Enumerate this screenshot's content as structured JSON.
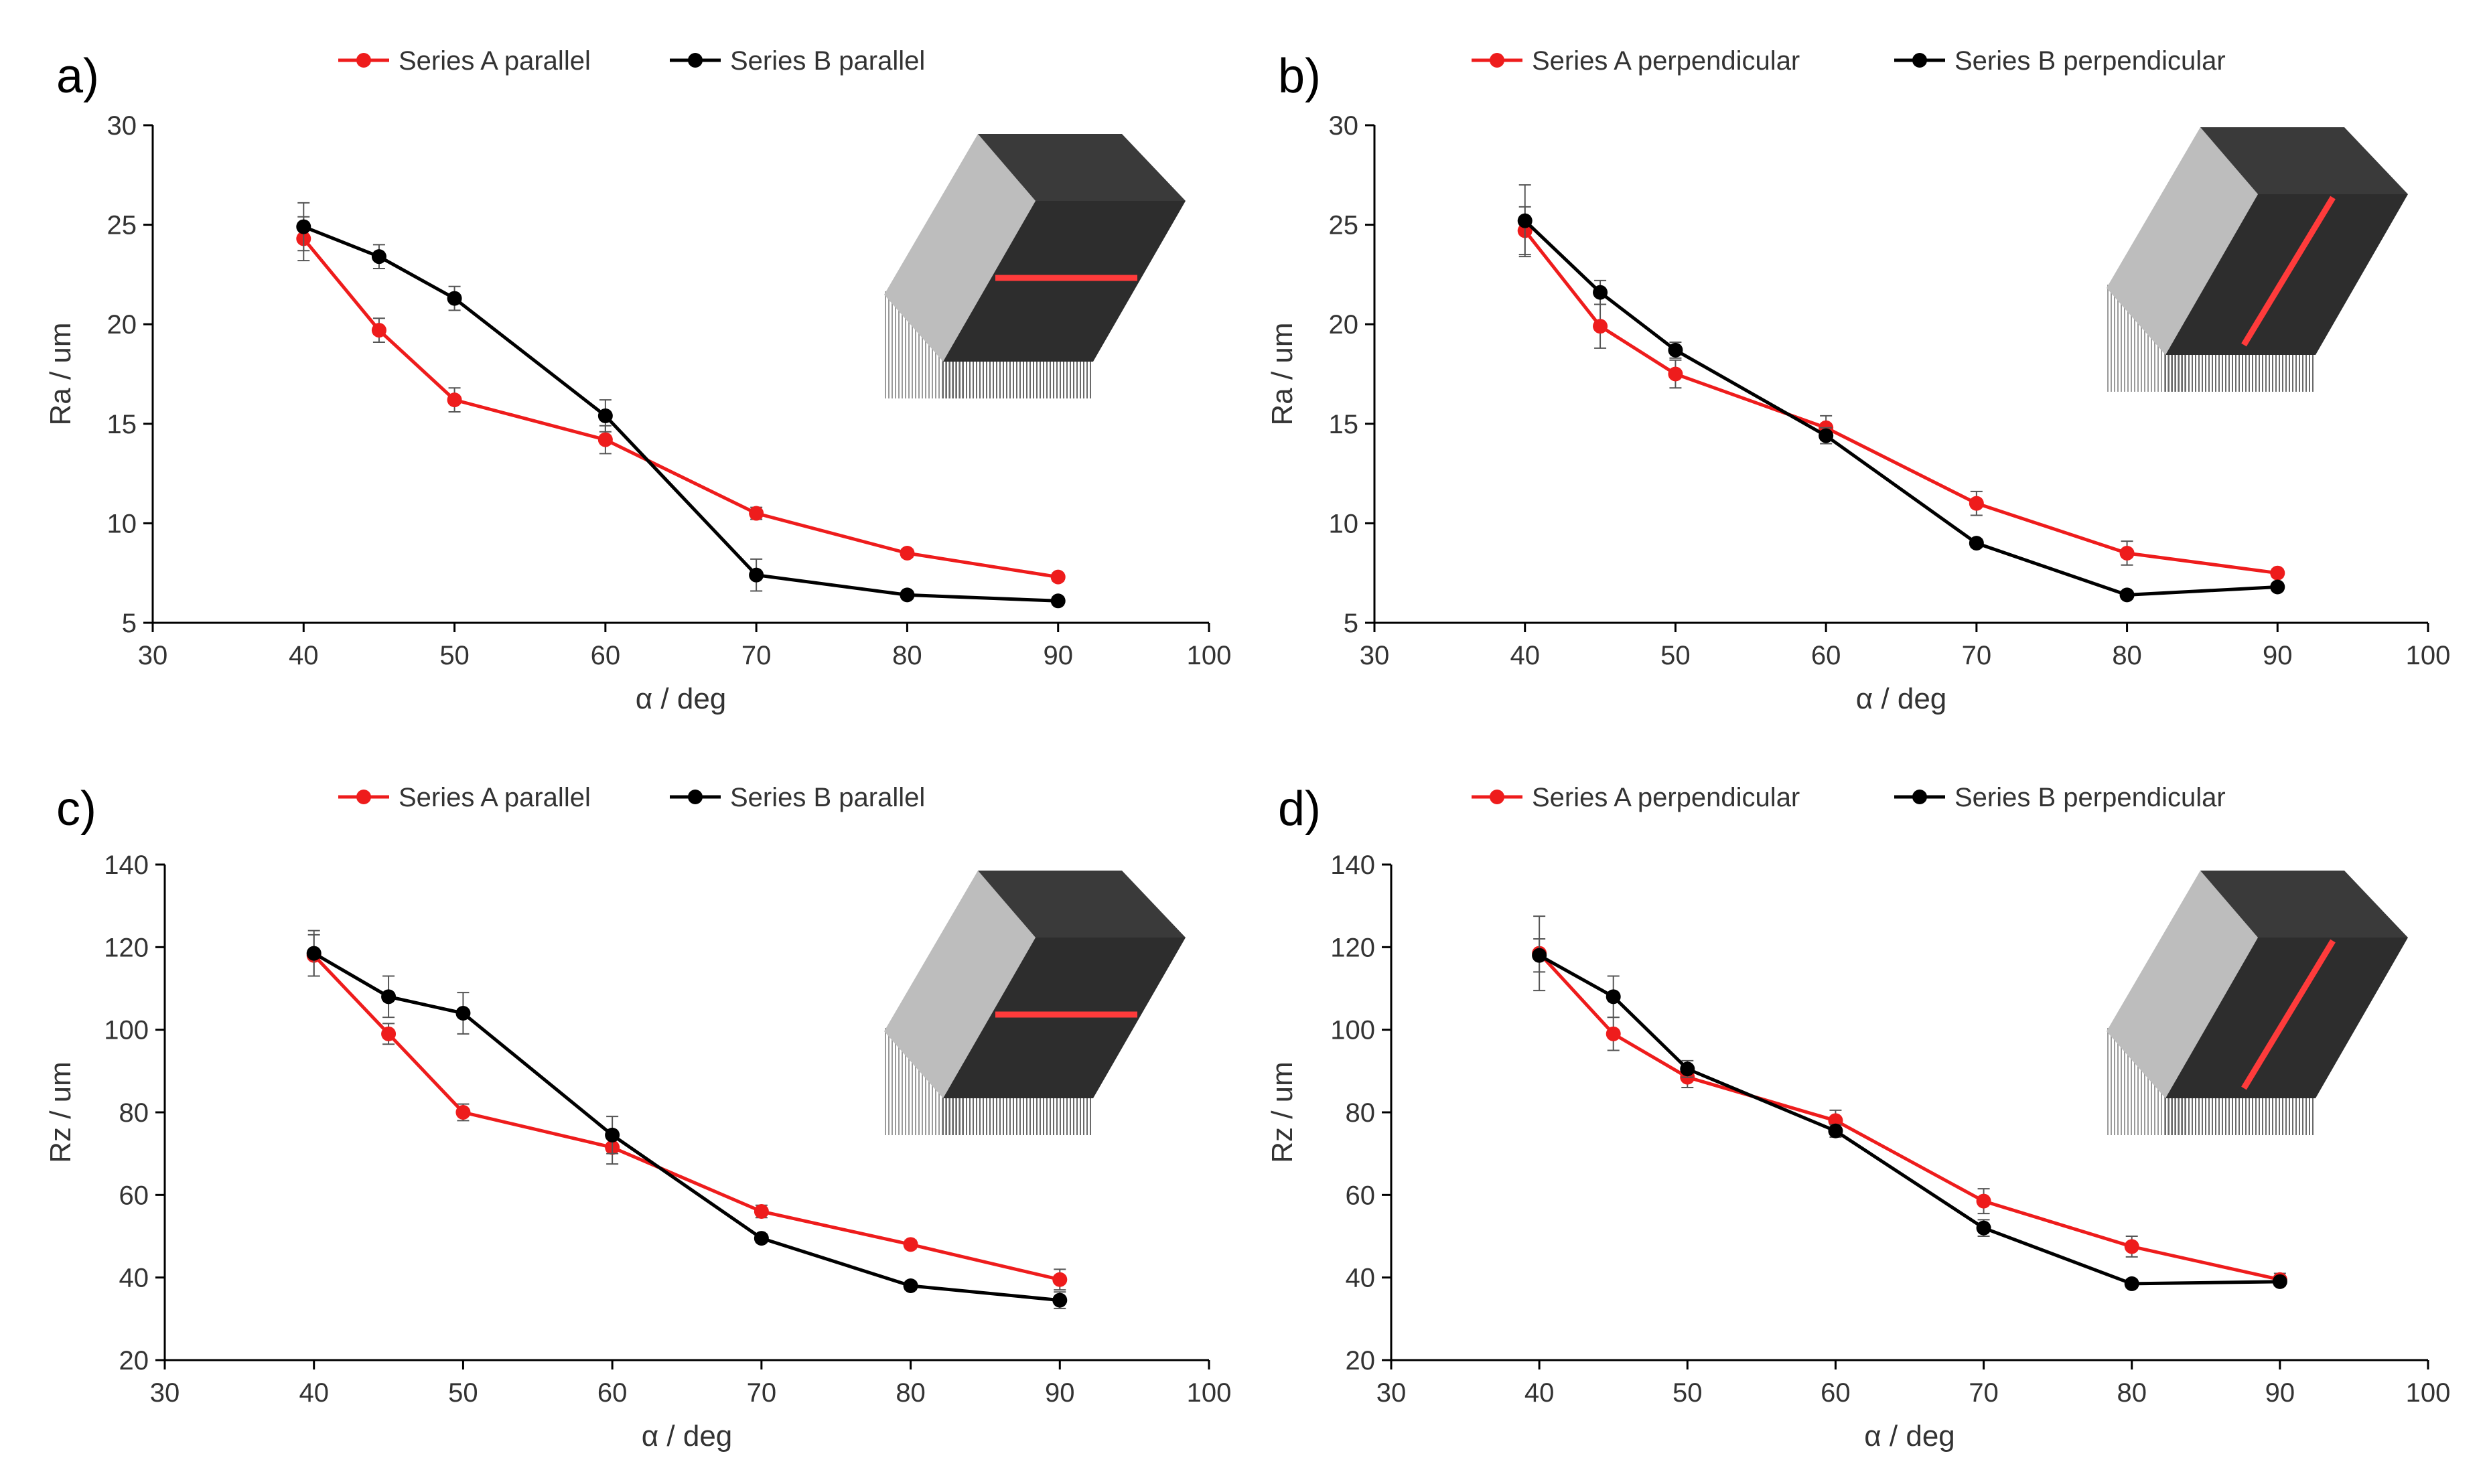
{
  "colors": {
    "series_a": "#ee1c1c",
    "series_b": "#000000",
    "axis": "#000000",
    "inset_light": "#bdbdbd",
    "inset_dark": "#2d2d2d",
    "inset_top": "#3a3a3a",
    "inset_line": "#ff3b3b"
  },
  "chart_data": [
    {
      "type": "line",
      "panel_label": "a)",
      "xlabel": "α / deg",
      "ylabel": "Ra / um",
      "xlim": [
        30,
        100
      ],
      "ylim": [
        5,
        30
      ],
      "xticks": [
        "30",
        "40",
        "50",
        "60",
        "70",
        "80",
        "90",
        "100"
      ],
      "yticks": [
        "5",
        "10",
        "15",
        "20",
        "25",
        "30"
      ],
      "inset_orientation": "parallel",
      "series": [
        {
          "name": "Series A parallel",
          "color": "#ee1c1c",
          "x": [
            40,
            45,
            50,
            60,
            70,
            80,
            90
          ],
          "y": [
            24.3,
            19.7,
            16.2,
            14.2,
            10.5,
            8.5,
            7.3
          ],
          "err": [
            1.1,
            0.6,
            0.6,
            0.7,
            0.3,
            0.2,
            0.2
          ]
        },
        {
          "name": "Series B parallel",
          "color": "#000000",
          "x": [
            40,
            45,
            50,
            60,
            70,
            80,
            90
          ],
          "y": [
            24.9,
            23.4,
            21.3,
            15.4,
            7.4,
            6.4,
            6.1
          ],
          "err": [
            1.2,
            0.6,
            0.6,
            0.8,
            0.8,
            0.2,
            0.2
          ]
        }
      ]
    },
    {
      "type": "line",
      "panel_label": "b)",
      "xlabel": "α / deg",
      "ylabel": "Ra / um",
      "xlim": [
        30,
        100
      ],
      "ylim": [
        5,
        30
      ],
      "xticks": [
        "30",
        "40",
        "50",
        "60",
        "70",
        "80",
        "90",
        "100"
      ],
      "yticks": [
        "5",
        "10",
        "15",
        "20",
        "25",
        "30"
      ],
      "inset_orientation": "perpendicular",
      "series": [
        {
          "name": "Series A perpendicular",
          "color": "#ee1c1c",
          "x": [
            40,
            45,
            50,
            60,
            70,
            80,
            90
          ],
          "y": [
            24.7,
            19.9,
            17.5,
            14.8,
            11.0,
            8.5,
            7.5
          ],
          "err": [
            1.2,
            1.1,
            0.7,
            0.6,
            0.6,
            0.6,
            0.2
          ]
        },
        {
          "name": "Series B perpendicular",
          "color": "#000000",
          "x": [
            40,
            45,
            50,
            60,
            70,
            80,
            90
          ],
          "y": [
            25.2,
            21.6,
            18.7,
            14.4,
            9.0,
            6.4,
            6.8
          ],
          "err": [
            1.8,
            0.6,
            0.4,
            0.4,
            0.2,
            0.2,
            0.2
          ]
        }
      ]
    },
    {
      "type": "line",
      "panel_label": "c)",
      "xlabel": "α / deg",
      "ylabel": "Rz / um",
      "xlim": [
        30,
        100
      ],
      "ylim": [
        20,
        140
      ],
      "xticks": [
        "30",
        "40",
        "50",
        "60",
        "70",
        "80",
        "90",
        "100"
      ],
      "yticks": [
        "20",
        "40",
        "60",
        "80",
        "100",
        "120",
        "140"
      ],
      "inset_orientation": "parallel",
      "series": [
        {
          "name": "Series A parallel",
          "color": "#ee1c1c",
          "x": [
            40,
            45,
            50,
            60,
            70,
            80,
            90
          ],
          "y": [
            118,
            99,
            80,
            71.5,
            56,
            48,
            39.5
          ],
          "err": [
            5,
            2.5,
            2,
            4,
            1.5,
            1,
            2.5
          ]
        },
        {
          "name": "Series B parallel",
          "color": "#000000",
          "x": [
            40,
            45,
            50,
            60,
            70,
            80,
            90
          ],
          "y": [
            118.5,
            108,
            104,
            74.5,
            49.5,
            38,
            34.5
          ],
          "err": [
            5.5,
            5,
            5,
            4.5,
            1,
            1,
            2
          ]
        }
      ]
    },
    {
      "type": "line",
      "panel_label": "d)",
      "xlabel": "α / deg",
      "ylabel": "Rz / um",
      "xlim": [
        30,
        100
      ],
      "ylim": [
        20,
        140
      ],
      "xticks": [
        "30",
        "40",
        "50",
        "60",
        "70",
        "80",
        "90",
        "100"
      ],
      "yticks": [
        "20",
        "40",
        "60",
        "80",
        "100",
        "120",
        "140"
      ],
      "inset_orientation": "perpendicular",
      "series": [
        {
          "name": "Series A perpendicular",
          "color": "#ee1c1c",
          "x": [
            40,
            45,
            50,
            60,
            70,
            80,
            90
          ],
          "y": [
            118.5,
            99,
            88.5,
            78,
            58.5,
            47.5,
            39.5
          ],
          "err": [
            9,
            4,
            2.5,
            2.5,
            3,
            2.5,
            1.5
          ]
        },
        {
          "name": "Series B perpendicular",
          "color": "#000000",
          "x": [
            40,
            45,
            50,
            60,
            70,
            80,
            90
          ],
          "y": [
            118,
            108,
            90.5,
            75.5,
            52,
            38.5,
            39
          ],
          "err": [
            4,
            5,
            2,
            1.5,
            2,
            1,
            1
          ]
        }
      ]
    }
  ]
}
